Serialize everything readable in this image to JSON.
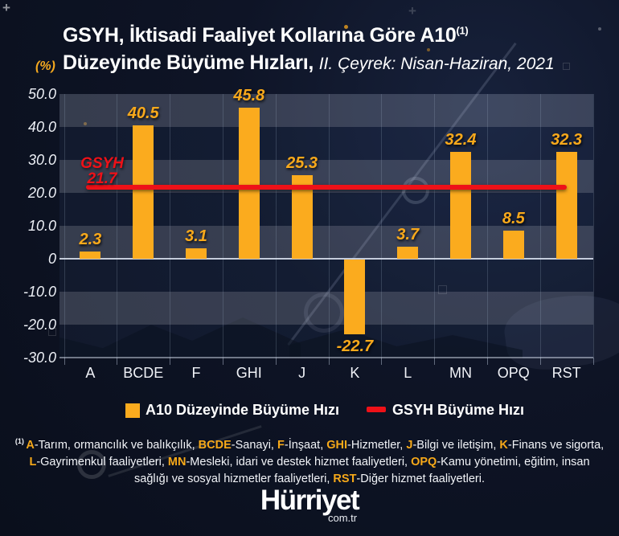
{
  "page": {
    "unit_label": "(%)",
    "title_line1": "GSYH, İktisadi Faaliyet Kollarına Göre A10",
    "title_superscript": "(1)",
    "title_line2": "Düzeyinde Büyüme Hızları,",
    "title_line2_italic": "II. Çeyrek: Nisan-Haziran, 2021"
  },
  "chart_data": {
    "type": "bar",
    "categories": [
      "A",
      "BCDE",
      "F",
      "GHI",
      "J",
      "K",
      "L",
      "MN",
      "OPQ",
      "RST"
    ],
    "values": [
      2.3,
      40.5,
      3.1,
      45.8,
      25.3,
      -22.7,
      3.7,
      32.4,
      8.5,
      32.3
    ],
    "value_labels": [
      "2.3",
      "40.5",
      "3.1",
      "45.8",
      "25.3",
      "-22.7",
      "3.7",
      "32.4",
      "8.5",
      "32.3"
    ],
    "reference_line": {
      "label": "GSYH",
      "value": 21.7,
      "value_label": "21.7"
    },
    "ylim": [
      -30,
      50
    ],
    "ytick_step": 10,
    "ytick_labels": [
      "50.0",
      "40.0",
      "30.0",
      "20.0",
      "10.0",
      "0",
      "-10.0",
      "-20.0",
      "-30.0"
    ],
    "grid": "banded",
    "bar_color": "#FBAB1E",
    "value_label_color": "#F9A91B",
    "line_color": "#EE1118",
    "band_light_color": "rgba(205,215,236,0.22)",
    "band_dark_color": "rgba(95,125,185,0.08)",
    "legend": [
      {
        "swatch": "square",
        "color": "#FBAB1E",
        "label": "A10 Düzeyinde Büyüme Hızı"
      },
      {
        "swatch": "dash",
        "color": "#EE1118",
        "label": "GSYH Büyüme Hızı"
      }
    ],
    "legend_position": "bottom"
  },
  "footnote": {
    "marker": "(1)",
    "segments": [
      {
        "text": "A",
        "highlight": true
      },
      {
        "text": "-Tarım, ormancılık ve balıkçılık, ",
        "highlight": false
      },
      {
        "text": "BCDE",
        "highlight": true
      },
      {
        "text": "-Sanayi, ",
        "highlight": false
      },
      {
        "text": "F",
        "highlight": true
      },
      {
        "text": "-İnşaat, ",
        "highlight": false
      },
      {
        "text": "GHI",
        "highlight": true
      },
      {
        "text": "-Hizmetler, ",
        "highlight": false
      },
      {
        "text": "J",
        "highlight": true
      },
      {
        "text": "-Bilgi ve iletişim, ",
        "highlight": false
      },
      {
        "text": "K",
        "highlight": true
      },
      {
        "text": "-Finans ve sigorta, ",
        "highlight": false
      },
      {
        "text": "L",
        "highlight": true
      },
      {
        "text": "-Gayrimenkul faaliyetleri, ",
        "highlight": false
      },
      {
        "text": "MN",
        "highlight": true
      },
      {
        "text": "-Mesleki, idari ve destek hizmet faaliyetleri, ",
        "highlight": false
      },
      {
        "text": "OPQ",
        "highlight": true
      },
      {
        "text": "-Kamu yönetimi, eğitim, insan sağlığı ve sosyal hizmetler faaliyetleri, ",
        "highlight": false
      },
      {
        "text": "RST",
        "highlight": true
      },
      {
        "text": "-Diğer hizmet faaliyetleri.",
        "highlight": false
      }
    ]
  },
  "branding": {
    "logo": "Hürriyet",
    "domain": "com.tr"
  }
}
